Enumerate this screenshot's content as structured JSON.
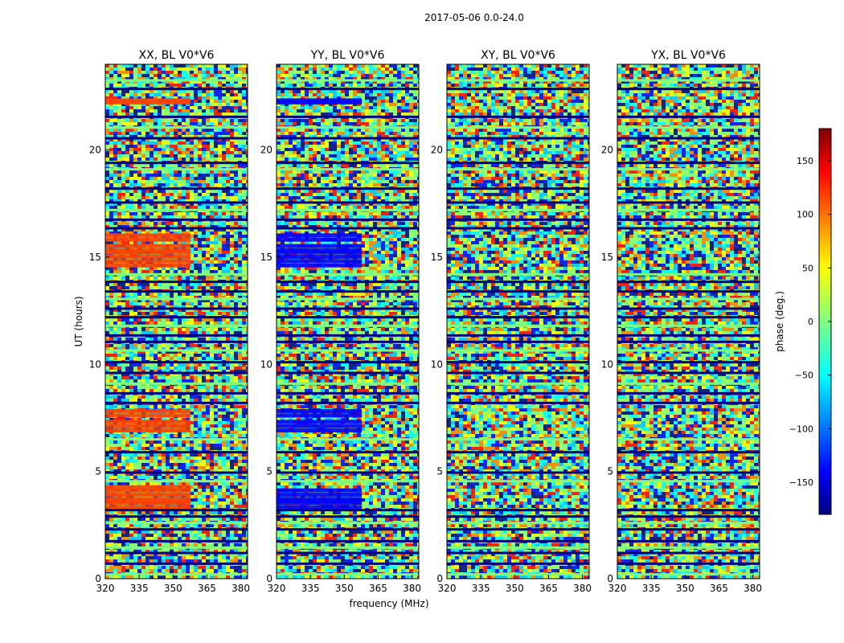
{
  "chart_data": {
    "type": "heatmap",
    "suptitle": "2017-05-06 0.0-24.0",
    "xlabel": "frequency (MHz)",
    "ylabel": "UT (hours)",
    "xlim": [
      320,
      383
    ],
    "ylim": [
      0,
      24
    ],
    "xticks": [
      "320",
      "335",
      "350",
      "365",
      "380"
    ],
    "yticks": [
      "0",
      "5",
      "10",
      "15",
      "20"
    ],
    "panels": [
      {
        "title": "XX, BL V0*V6",
        "hot_rows": [
          3.3,
          3.5,
          3.6,
          3.7,
          3.9,
          4.1,
          4.25,
          6.9,
          7.1,
          7.3,
          7.6,
          7.8,
          14.6,
          14.8,
          15.0,
          15.2,
          15.3,
          15.5,
          15.8,
          16.0,
          22.2,
          22.3
        ]
      },
      {
        "title": "YY, BL V0*V6",
        "hot_rows": [
          3.3,
          3.5,
          3.6,
          3.7,
          3.9,
          4.1,
          6.9,
          7.1,
          7.3,
          7.6,
          7.8,
          14.6,
          14.8,
          15.0,
          15.2,
          15.3,
          15.5,
          15.8,
          16.0,
          22.2,
          22.3
        ]
      },
      {
        "title": "XY, BL V0*V6",
        "hot_rows": []
      },
      {
        "title": "YX, BL V0*V6",
        "hot_rows": []
      }
    ],
    "flagged_rows_ut": [
      0.2,
      0.7,
      1.2,
      1.45,
      1.75,
      2.3,
      2.6,
      2.9,
      3.2,
      4.55,
      4.95,
      5.9,
      6.5,
      8.2,
      8.65,
      9.1,
      9.6,
      10.1,
      10.65,
      11.05,
      11.35,
      11.8,
      12.2,
      12.6,
      13.05,
      13.4,
      13.85,
      14.2,
      16.35,
      16.75,
      17.2,
      17.55,
      18.2,
      19.1,
      19.4,
      20.55,
      21.05,
      21.55,
      22.85,
      23.25
    ],
    "colorbar": {
      "label": "phase (deg.)",
      "range": [
        -180,
        180
      ],
      "ticks": [
        "150",
        "100",
        "50",
        "0",
        "−50",
        "−100",
        "−150"
      ],
      "tick_values": [
        150,
        100,
        50,
        0,
        -50,
        -100,
        -150
      ],
      "colormap": "jet",
      "colors": [
        "#00007f",
        "#0000ff",
        "#007fff",
        "#00ffff",
        "#7fff7f",
        "#ffff00",
        "#ff7f00",
        "#ff0000",
        "#7f0000"
      ]
    }
  }
}
